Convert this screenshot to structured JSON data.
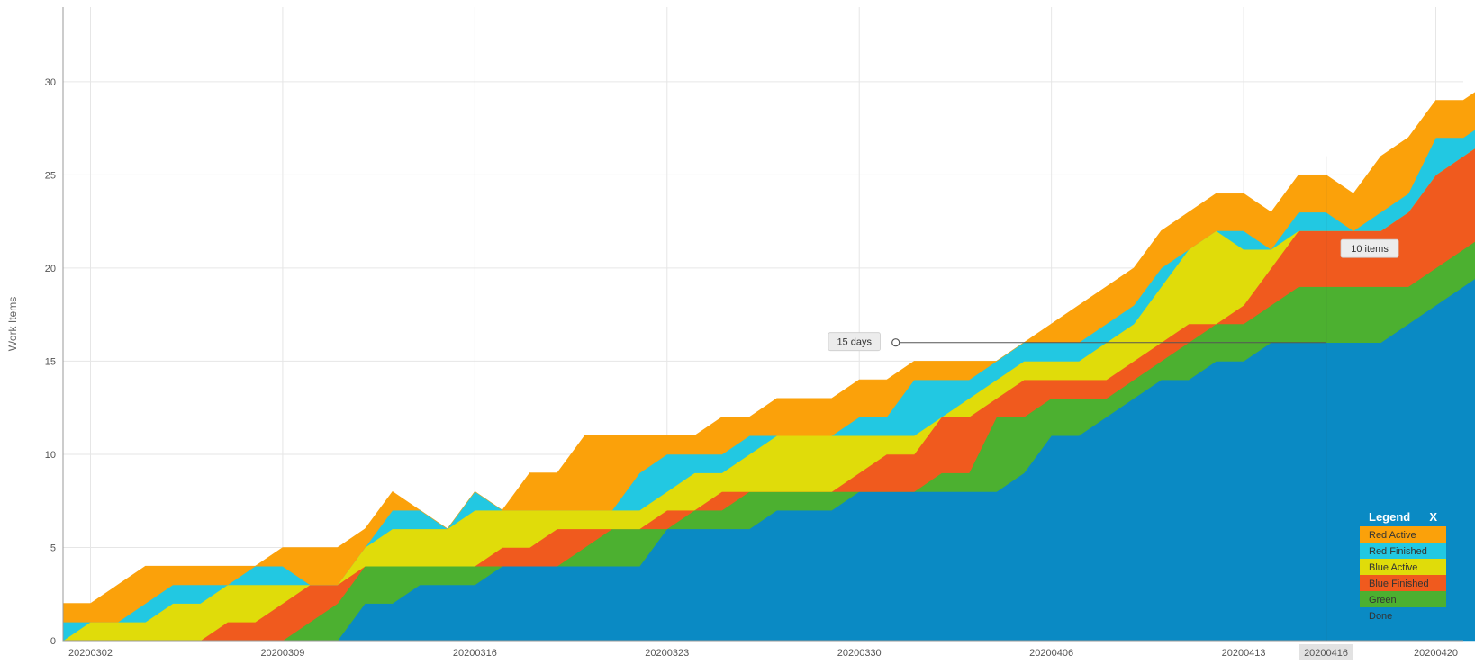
{
  "chart_data": {
    "type": "area",
    "stacked": true,
    "ylabel": "Work Items",
    "ylim": [
      0,
      34
    ],
    "yticks": [
      0,
      5,
      10,
      15,
      20,
      25,
      30
    ],
    "x_start": "20200301",
    "x_end": "20200421",
    "xticks": [
      "20200302",
      "20200309",
      "20200316",
      "20200323",
      "20200330",
      "20200406",
      "20200413",
      "20200420"
    ],
    "grid": true,
    "series": [
      {
        "name": "Done",
        "color": "#0a8ac4",
        "values": [
          0,
          0,
          0,
          0,
          0,
          0,
          0,
          0,
          0,
          0,
          0,
          2,
          2,
          3,
          3,
          3,
          4,
          4,
          4,
          4,
          4,
          4,
          6,
          6,
          6,
          6,
          7,
          7,
          7,
          8,
          8,
          8,
          8,
          8,
          8,
          9,
          11,
          11,
          12,
          13,
          14,
          14,
          15,
          15,
          16,
          16,
          16,
          16,
          16,
          17,
          18,
          19,
          20,
          20
        ]
      },
      {
        "name": "Green",
        "color": "#4cb030",
        "values": [
          0,
          0,
          0,
          0,
          0,
          0,
          0,
          0,
          0,
          1,
          2,
          2,
          2,
          1,
          1,
          1,
          0,
          0,
          0,
          1,
          2,
          2,
          0,
          1,
          1,
          2,
          1,
          1,
          1,
          0,
          0,
          0,
          1,
          1,
          4,
          3,
          2,
          2,
          1,
          1,
          1,
          2,
          2,
          2,
          2,
          3,
          3,
          3,
          3,
          2,
          2,
          2,
          2,
          3
        ]
      },
      {
        "name": "Blue Finished",
        "color": "#f05a1e",
        "values": [
          0,
          0,
          0,
          0,
          0,
          0,
          1,
          1,
          2,
          2,
          1,
          0,
          0,
          0,
          0,
          0,
          1,
          1,
          2,
          1,
          0,
          0,
          1,
          0,
          1,
          0,
          0,
          0,
          0,
          1,
          2,
          2,
          3,
          3,
          1,
          2,
          1,
          1,
          1,
          1,
          1,
          1,
          0,
          1,
          2,
          3,
          3,
          3,
          3,
          4,
          5,
          5,
          5,
          4
        ]
      },
      {
        "name": "Blue Active",
        "color": "#e0dc0a",
        "values": [
          0,
          1,
          1,
          1,
          2,
          2,
          2,
          2,
          1,
          0,
          0,
          1,
          2,
          2,
          2,
          3,
          2,
          2,
          1,
          1,
          1,
          1,
          1,
          2,
          1,
          2,
          3,
          3,
          3,
          2,
          1,
          1,
          0,
          1,
          1,
          1,
          1,
          1,
          2,
          2,
          3,
          4,
          5,
          3,
          1,
          0,
          0,
          0,
          0,
          0,
          0,
          0,
          0,
          0
        ]
      },
      {
        "name": "Red Finished",
        "color": "#22c8e2",
        "values": [
          1,
          0,
          0,
          1,
          1,
          1,
          0,
          1,
          1,
          0,
          0,
          0,
          1,
          1,
          0,
          1,
          0,
          0,
          0,
          0,
          0,
          2,
          2,
          1,
          1,
          1,
          0,
          0,
          0,
          1,
          1,
          3,
          2,
          1,
          1,
          1,
          1,
          1,
          1,
          1,
          1,
          0,
          0,
          1,
          0,
          1,
          1,
          0,
          1,
          1,
          2,
          1,
          1,
          1
        ]
      },
      {
        "name": "Red Active",
        "color": "#fba10a",
        "values": [
          1,
          1,
          2,
          2,
          1,
          1,
          1,
          0,
          1,
          2,
          2,
          1,
          1,
          0,
          0,
          0,
          0,
          2,
          2,
          4,
          4,
          2,
          1,
          1,
          2,
          1,
          2,
          2,
          2,
          2,
          2,
          1,
          1,
          1,
          0,
          0,
          1,
          2,
          2,
          2,
          2,
          2,
          2,
          2,
          2,
          2,
          2,
          2,
          3,
          3,
          2,
          2,
          2,
          3
        ]
      }
    ],
    "annotations": [
      {
        "label": "15 days",
        "x": "20200331",
        "y": 16
      },
      {
        "label": "10 items",
        "x": "20200417",
        "y": 21
      }
    ],
    "marker": {
      "x": "20200416",
      "label": "20200416"
    },
    "legend": {
      "title": "Legend",
      "close_label": "X",
      "position": "bottom-right",
      "order": [
        "Red Active",
        "Red Finished",
        "Blue Active",
        "Blue Finished",
        "Green",
        "Done"
      ]
    }
  }
}
